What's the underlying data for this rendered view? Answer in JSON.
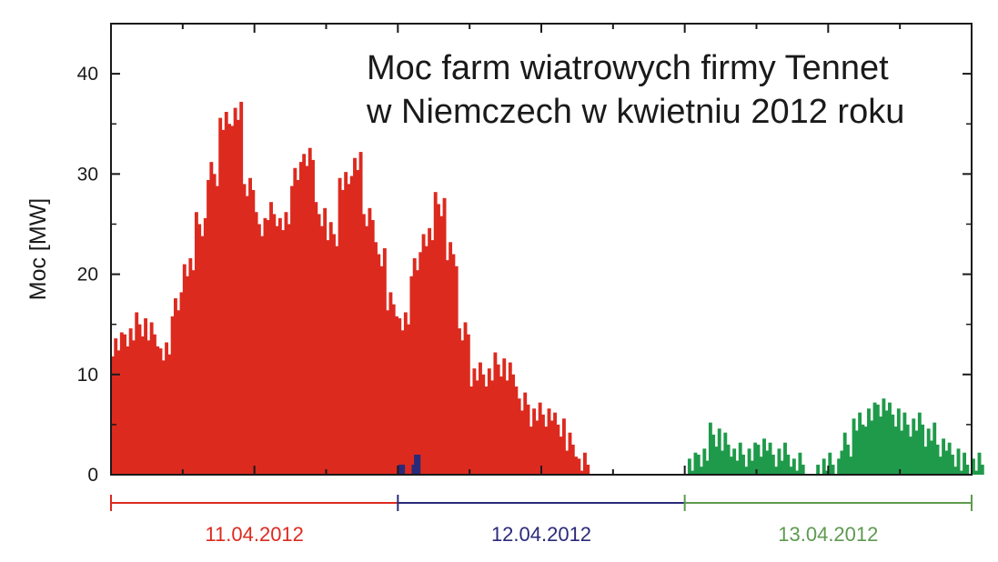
{
  "chart_data": {
    "type": "bar",
    "title_lines": [
      "Moc farm wiatrowych firmy Tennet",
      "w Niemczech w kwietniu 2012 roku"
    ],
    "ylabel": "Moc [MW]",
    "xlabel": "",
    "ylim": [
      0,
      45
    ],
    "yticks": [
      0,
      10,
      20,
      30,
      40
    ],
    "grid": false,
    "legend": "none",
    "x_unit": "hour",
    "xlim": [
      0,
      72
    ],
    "series": [
      {
        "color": "#dc2a1f",
        "hourly_values": [
          13,
          14,
          15,
          14,
          12,
          17,
          21,
          25,
          30,
          35,
          36,
          29,
          25,
          26,
          25,
          30,
          32,
          26,
          24,
          29,
          31,
          26,
          22,
          17,
          15,
          21,
          24,
          27,
          22,
          14,
          10,
          10,
          11,
          10,
          7,
          6,
          6,
          5,
          3,
          1
        ],
        "hourly_start": 0
      },
      {
        "color": "#2a2a7a",
        "values": [
          [
            24.05,
            1
          ],
          [
            24.3,
            1
          ],
          [
            25.15,
            1
          ],
          [
            25.35,
            2
          ],
          [
            25.6,
            2
          ]
        ]
      },
      {
        "color": "#1f9a4a",
        "hourly_values": [
          1,
          2,
          4,
          3,
          2,
          2,
          3,
          2,
          2,
          1,
          0,
          1,
          1,
          3,
          5,
          6,
          7,
          6,
          5,
          5,
          4,
          3,
          2,
          1,
          1
        ],
        "hourly_start": 48
      }
    ],
    "date_segments": [
      {
        "label": "11.04.2012",
        "start": 0,
        "end": 24,
        "color": "#dc2a1f"
      },
      {
        "label": "12.04.2012",
        "start": 24,
        "end": 48,
        "color": "#2a2a7a"
      },
      {
        "label": "13.04.2012",
        "start": 48,
        "end": 72,
        "color": "#5e9a50"
      }
    ]
  }
}
